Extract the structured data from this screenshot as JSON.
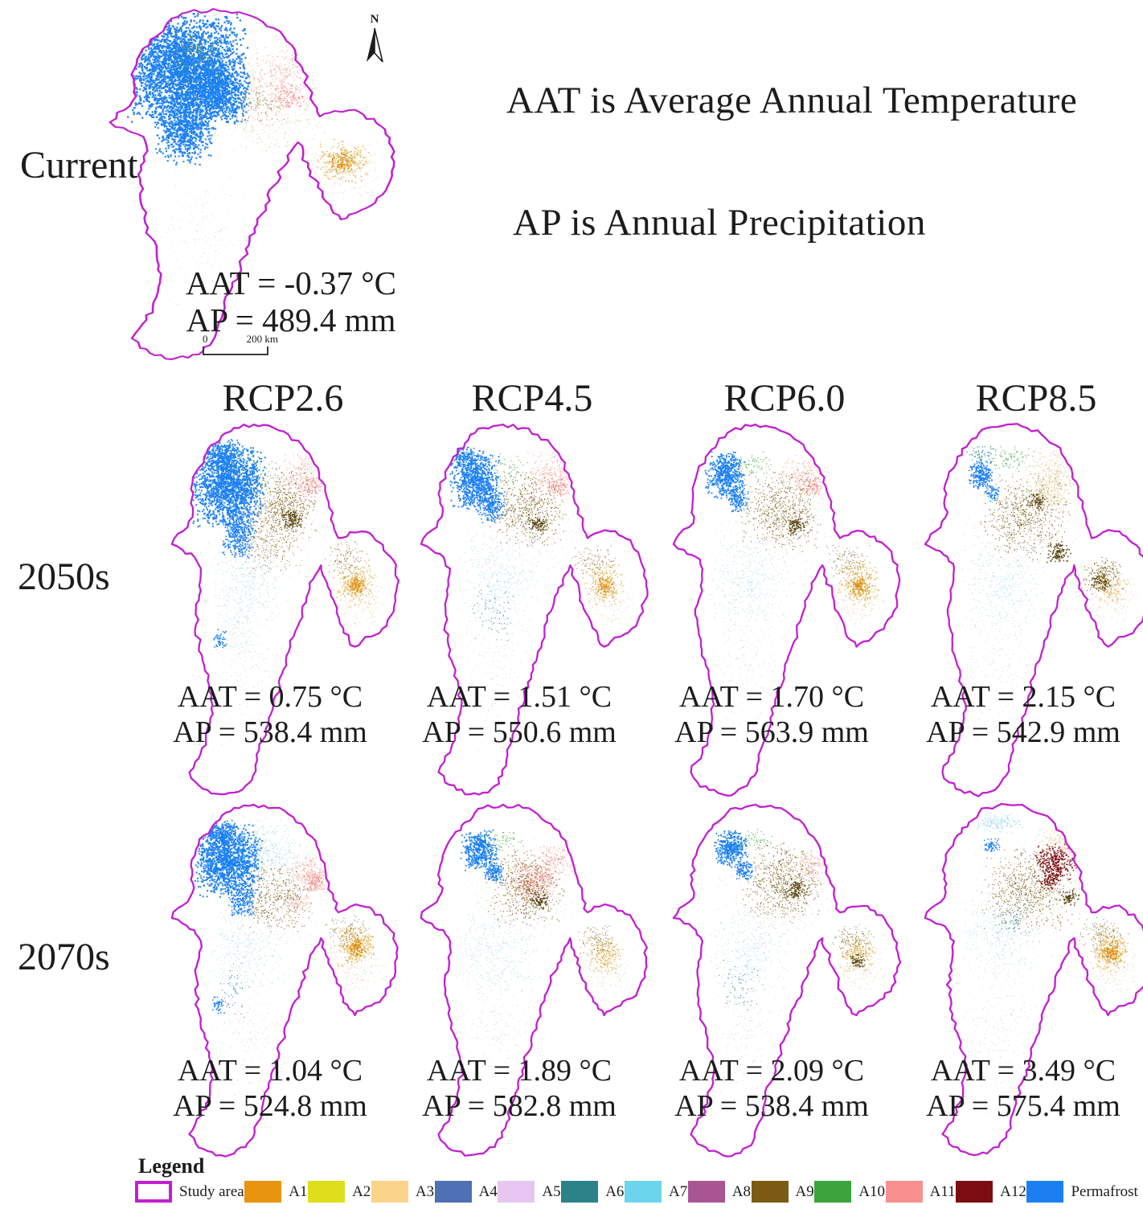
{
  "notes": {
    "line1": "AAT is Average Annual Temperature",
    "line2": "AP is Annual Precipitation"
  },
  "current": {
    "label": "Current",
    "aat": "AAT = -0.37 °C",
    "ap": "AP = 489.4 mm",
    "north_label": "N",
    "scalebar_zero": "0",
    "scalebar_end": "200 km"
  },
  "scenarios": [
    "RCP2.6",
    "RCP4.5",
    "RCP6.0",
    "RCP8.5"
  ],
  "rows": [
    {
      "label": "2050s",
      "maps": [
        {
          "scenario": "RCP2.6",
          "aat": "AAT = 0.75 °C",
          "ap": "AP = 538.4 mm"
        },
        {
          "scenario": "RCP4.5",
          "aat": "AAT = 1.51 °C",
          "ap": "AP = 550.6 mm"
        },
        {
          "scenario": "RCP6.0",
          "aat": "AAT = 1.70 °C",
          "ap": "AP = 563.9 mm"
        },
        {
          "scenario": "RCP8.5",
          "aat": "AAT = 2.15 °C",
          "ap": "AP = 542.9 mm"
        }
      ]
    },
    {
      "label": "2070s",
      "maps": [
        {
          "scenario": "RCP2.6",
          "aat": "AAT = 1.04 °C",
          "ap": "AP = 524.8 mm"
        },
        {
          "scenario": "RCP4.5",
          "aat": "AAT = 1.89 °C",
          "ap": "AP = 582.8 mm"
        },
        {
          "scenario": "RCP6.0",
          "aat": "AAT = 2.09 °C",
          "ap": "AP = 538.4 mm"
        },
        {
          "scenario": "RCP8.5",
          "aat": "AAT = 3.49 °C",
          "ap": "AP = 575.4 mm"
        }
      ]
    }
  ],
  "legend": {
    "title": "Legend",
    "outline_color": "#c21fd0",
    "items": [
      {
        "label": "Study area",
        "type": "outline",
        "color": "#c21fd0"
      },
      {
        "label": "A1",
        "color": "#e8940e"
      },
      {
        "label": "A2",
        "color": "#dede1c"
      },
      {
        "label": "A3",
        "color": "#fbd38b"
      },
      {
        "label": "A4",
        "color": "#4e70b4"
      },
      {
        "label": "A5",
        "color": "#e7c7f2"
      },
      {
        "label": "A6",
        "color": "#2b8288"
      },
      {
        "label": "A7",
        "color": "#6bd5ee"
      },
      {
        "label": "A8",
        "color": "#aa5593"
      },
      {
        "label": "A9",
        "color": "#7b5b13"
      },
      {
        "label": "A10",
        "color": "#3ba43b"
      },
      {
        "label": "A11",
        "color": "#f89090"
      },
      {
        "label": "A12",
        "color": "#7c0e12"
      },
      {
        "label": "Permafrost",
        "color": "#1b7ff2"
      }
    ]
  },
  "map_palette": {
    "blue": "#1b7ff2",
    "lightblue": "#79b7ec",
    "cyan": "#a8dcea",
    "teal": "#2b8288",
    "green": "#3ba43b",
    "olive": "#9aa626",
    "pink": "#f2b7b0",
    "salmon": "#f48f8f",
    "gold": "#e3b44e",
    "deeporange": "#de8d12",
    "brown": "#7b5b13",
    "darkbrown": "#55400e",
    "darkred": "#7c0e12",
    "tan": "#e3d5ae",
    "web": "#9c8a66"
  },
  "map_render": {
    "current": [
      [
        "web",
        150,
        110,
        80,
        80,
        260,
        0.8,
        0.5
      ],
      [
        "web",
        120,
        280,
        50,
        120,
        160,
        0.8,
        0.5
      ],
      [
        "tan",
        190,
        140,
        50,
        45,
        220,
        1.2,
        0.8
      ],
      [
        "pink",
        192,
        92,
        40,
        46,
        340,
        1.4,
        0.85
      ],
      [
        "salmon",
        200,
        112,
        17,
        18,
        90,
        1.4,
        0.9
      ],
      [
        "blue",
        100,
        75,
        62,
        72,
        2800,
        2.3,
        0.95
      ],
      [
        "blue",
        100,
        148,
        30,
        48,
        800,
        2.1,
        0.95
      ],
      [
        "blue",
        132,
        108,
        34,
        38,
        700,
        2.1,
        0.95
      ],
      [
        "olive",
        112,
        52,
        34,
        28,
        110,
        1.2,
        0.9
      ],
      [
        "green",
        104,
        84,
        40,
        45,
        120,
        1.1,
        0.9
      ],
      [
        "gold",
        252,
        190,
        26,
        28,
        260,
        1.5,
        0.9
      ],
      [
        "deeporange",
        250,
        192,
        13,
        14,
        90,
        1.7,
        0.9
      ],
      [
        "tan",
        252,
        205,
        38,
        40,
        200,
        1.2,
        0.8
      ],
      [
        "brown",
        170,
        125,
        30,
        30,
        120,
        1.0,
        0.85
      ]
    ],
    "m50r26": [
      [
        "web",
        150,
        115,
        78,
        78,
        320,
        0.8,
        0.5
      ],
      [
        "web",
        118,
        280,
        48,
        110,
        200,
        0.8,
        0.5
      ],
      [
        "cyan",
        120,
        185,
        52,
        58,
        340,
        1.1,
        0.8
      ],
      [
        "cyan",
        108,
        240,
        28,
        45,
        140,
        1.0,
        0.8
      ],
      [
        "pink",
        190,
        62,
        32,
        28,
        240,
        1.3,
        0.85
      ],
      [
        "salmon",
        197,
        74,
        14,
        13,
        80,
        1.3,
        0.9
      ],
      [
        "brown",
        162,
        96,
        44,
        46,
        560,
        1.1,
        0.9
      ],
      [
        "darkbrown",
        174,
        113,
        14,
        12,
        110,
        1.5,
        0.95
      ],
      [
        "brown",
        142,
        140,
        48,
        38,
        280,
        1.0,
        0.85
      ],
      [
        "blue",
        96,
        72,
        46,
        54,
        1600,
        2.0,
        0.95
      ],
      [
        "blue",
        108,
        128,
        22,
        32,
        380,
        1.7,
        0.95
      ],
      [
        "blue",
        86,
        38,
        30,
        20,
        260,
        1.7,
        0.95
      ],
      [
        "blue",
        86,
        255,
        9,
        15,
        45,
        1.6,
        0.95
      ],
      [
        "gold",
        250,
        190,
        26,
        28,
        250,
        1.4,
        0.9
      ],
      [
        "deeporange",
        251,
        192,
        12,
        13,
        90,
        1.6,
        0.9
      ],
      [
        "brown",
        240,
        162,
        30,
        24,
        130,
        1.0,
        0.85
      ],
      [
        "tan",
        254,
        208,
        36,
        36,
        170,
        1.1,
        0.8
      ],
      [
        "green",
        125,
        60,
        35,
        30,
        80,
        1.1,
        0.9
      ]
    ],
    "m50r45": [
      [
        "web",
        150,
        118,
        78,
        78,
        340,
        0.8,
        0.5
      ],
      [
        "web",
        118,
        282,
        48,
        110,
        210,
        0.8,
        0.5
      ],
      [
        "cyan",
        122,
        183,
        54,
        60,
        360,
        1.1,
        0.8
      ],
      [
        "teal",
        115,
        222,
        28,
        40,
        70,
        1.1,
        0.9
      ],
      [
        "pink",
        187,
        60,
        33,
        29,
        270,
        1.3,
        0.85
      ],
      [
        "salmon",
        194,
        75,
        15,
        13,
        85,
        1.3,
        0.9
      ],
      [
        "brown",
        158,
        100,
        47,
        48,
        540,
        1.1,
        0.9
      ],
      [
        "darkbrown",
        169,
        118,
        13,
        12,
        85,
        1.5,
        0.95
      ],
      [
        "blue",
        93,
        66,
        31,
        37,
        750,
        1.9,
        0.95
      ],
      [
        "blue",
        113,
        96,
        19,
        23,
        270,
        1.6,
        0.95
      ],
      [
        "blue",
        81,
        41,
        19,
        15,
        130,
        1.6,
        0.95
      ],
      [
        "gold",
        250,
        190,
        25,
        27,
        210,
        1.4,
        0.9
      ],
      [
        "deeporange",
        251,
        191,
        11,
        12,
        70,
        1.6,
        0.9
      ],
      [
        "brown",
        238,
        164,
        28,
        24,
        125,
        1.0,
        0.85
      ],
      [
        "tan",
        254,
        208,
        35,
        35,
        160,
        1.1,
        0.8
      ],
      [
        "green",
        130,
        55,
        32,
        24,
        70,
        1.1,
        0.9
      ]
    ],
    "m50r60": [
      [
        "web",
        150,
        118,
        78,
        78,
        350,
        0.8,
        0.5
      ],
      [
        "web",
        118,
        283,
        48,
        110,
        215,
        0.8,
        0.5
      ],
      [
        "cyan",
        120,
        188,
        54,
        60,
        350,
        1.1,
        0.8
      ],
      [
        "pink",
        189,
        62,
        31,
        27,
        240,
        1.3,
        0.85
      ],
      [
        "salmon",
        196,
        74,
        14,
        12,
        75,
        1.3,
        0.9
      ],
      [
        "brown",
        156,
        103,
        50,
        50,
        580,
        1.1,
        0.9
      ],
      [
        "darkbrown",
        177,
        121,
        14,
        12,
        95,
        1.5,
        0.95
      ],
      [
        "blue",
        91,
        61,
        25,
        29,
        470,
        1.9,
        0.95
      ],
      [
        "blue",
        105,
        89,
        15,
        19,
        170,
        1.6,
        0.95
      ],
      [
        "green",
        122,
        50,
        27,
        19,
        75,
        1.1,
        0.9
      ],
      [
        "gold",
        252,
        189,
        26,
        28,
        240,
        1.5,
        0.9
      ],
      [
        "deeporange",
        252,
        191,
        13,
        13,
        95,
        1.7,
        0.9
      ],
      [
        "tan",
        253,
        208,
        36,
        36,
        165,
        1.1,
        0.8
      ],
      [
        "brown",
        240,
        163,
        28,
        23,
        120,
        1.0,
        0.85
      ]
    ],
    "m50r85": [
      [
        "web",
        150,
        118,
        78,
        78,
        360,
        0.8,
        0.5
      ],
      [
        "web",
        118,
        283,
        48,
        110,
        220,
        0.8,
        0.5
      ],
      [
        "cyan",
        122,
        190,
        54,
        62,
        350,
        1.1,
        0.8
      ],
      [
        "tan",
        183,
        62,
        40,
        34,
        330,
        1.4,
        0.85
      ],
      [
        "gold",
        178,
        85,
        28,
        22,
        130,
        1.2,
        0.7
      ],
      [
        "brown",
        150,
        110,
        56,
        52,
        620,
        1.1,
        0.9
      ],
      [
        "darkbrown",
        189,
        152,
        16,
        13,
        115,
        1.5,
        0.95
      ],
      [
        "darkbrown",
        163,
        92,
        11,
        10,
        70,
        1.4,
        0.95
      ],
      [
        "green",
        132,
        42,
        31,
        17,
        85,
        1.1,
        0.9
      ],
      [
        "teal",
        97,
        36,
        19,
        12,
        55,
        1.2,
        0.9
      ],
      [
        "blue",
        96,
        60,
        16,
        18,
        220,
        1.7,
        0.95
      ],
      [
        "blue",
        109,
        82,
        10,
        11,
        75,
        1.5,
        0.95
      ],
      [
        "brown",
        243,
        180,
        27,
        23,
        200,
        1.2,
        0.9
      ],
      [
        "darkbrown",
        240,
        188,
        12,
        11,
        70,
        1.5,
        0.95
      ],
      [
        "gold",
        255,
        195,
        22,
        24,
        110,
        1.3,
        0.85
      ],
      [
        "tan",
        253,
        208,
        35,
        35,
        155,
        1.1,
        0.8
      ]
    ],
    "m70r26": [
      [
        "web",
        150,
        118,
        78,
        78,
        330,
        0.8,
        0.5
      ],
      [
        "web",
        118,
        282,
        48,
        110,
        205,
        0.8,
        0.5
      ],
      [
        "cyan",
        130,
        60,
        55,
        45,
        450,
        1.3,
        0.8
      ],
      [
        "cyan",
        118,
        182,
        50,
        56,
        300,
        1.1,
        0.8
      ],
      [
        "pink",
        196,
        90,
        30,
        27,
        280,
        1.4,
        0.85
      ],
      [
        "salmon",
        201,
        97,
        14,
        13,
        85,
        1.4,
        0.9
      ],
      [
        "pink",
        182,
        125,
        16,
        14,
        90,
        1.3,
        0.8
      ],
      [
        "brown",
        152,
        118,
        46,
        44,
        400,
        1.1,
        0.9
      ],
      [
        "blue",
        96,
        70,
        42,
        48,
        1250,
        2.0,
        0.95
      ],
      [
        "blue",
        86,
        36,
        25,
        17,
        220,
        1.7,
        0.95
      ],
      [
        "blue",
        113,
        117,
        19,
        26,
        250,
        1.6,
        0.95
      ],
      [
        "blue",
        85,
        250,
        8,
        13,
        40,
        1.6,
        0.95
      ],
      [
        "gold",
        251,
        177,
        25,
        26,
        260,
        1.5,
        0.9
      ],
      [
        "deeporange",
        251,
        179,
        12,
        12,
        85,
        1.7,
        0.9
      ],
      [
        "brown",
        238,
        160,
        28,
        22,
        120,
        1.0,
        0.85
      ],
      [
        "tan",
        253,
        205,
        35,
        35,
        160,
        1.1,
        0.8
      ],
      [
        "teal",
        103,
        232,
        24,
        38,
        55,
        1.1,
        0.9
      ]
    ],
    "m70r45": [
      [
        "web",
        150,
        118,
        78,
        78,
        345,
        0.8,
        0.5
      ],
      [
        "web",
        118,
        283,
        48,
        110,
        215,
        0.8,
        0.5
      ],
      [
        "cyan",
        120,
        185,
        53,
        60,
        340,
        1.1,
        0.8
      ],
      [
        "salmon",
        166,
        97,
        31,
        29,
        310,
        1.4,
        0.85
      ],
      [
        "pink",
        191,
        70,
        25,
        21,
        160,
        1.3,
        0.85
      ],
      [
        "brown",
        156,
        106,
        50,
        50,
        540,
        1.1,
        0.9
      ],
      [
        "darkbrown",
        171,
        121,
        13,
        12,
        85,
        1.5,
        0.95
      ],
      [
        "blue",
        99,
        58,
        23,
        27,
        420,
        1.8,
        0.95
      ],
      [
        "blue",
        116,
        86,
        13,
        16,
        140,
        1.6,
        0.95
      ],
      [
        "gold",
        250,
        189,
        23,
        25,
        160,
        1.4,
        0.9
      ],
      [
        "brown",
        242,
        170,
        27,
        22,
        125,
        1.0,
        0.85
      ],
      [
        "tan",
        253,
        207,
        34,
        34,
        155,
        1.1,
        0.8
      ],
      [
        "green",
        128,
        48,
        26,
        16,
        60,
        1.1,
        0.9
      ]
    ],
    "m70r60": [
      [
        "web",
        150,
        118,
        78,
        78,
        350,
        0.8,
        0.5
      ],
      [
        "web",
        118,
        283,
        48,
        110,
        218,
        0.8,
        0.5
      ],
      [
        "cyan",
        118,
        183,
        53,
        60,
        330,
        1.1,
        0.8
      ],
      [
        "teal",
        107,
        228,
        26,
        38,
        60,
        1.1,
        0.9
      ],
      [
        "pink",
        196,
        76,
        23,
        20,
        150,
        1.3,
        0.85
      ],
      [
        "brown",
        159,
        99,
        53,
        52,
        640,
        1.1,
        0.9
      ],
      [
        "darkbrown",
        176,
        106,
        15,
        13,
        105,
        1.5,
        0.95
      ],
      [
        "blue",
        98,
        57,
        21,
        24,
        360,
        1.8,
        0.95
      ],
      [
        "blue",
        113,
        83,
        12,
        14,
        115,
        1.6,
        0.95
      ],
      [
        "gold",
        250,
        187,
        23,
        25,
        160,
        1.4,
        0.9
      ],
      [
        "brown",
        245,
        170,
        27,
        22,
        135,
        1.0,
        0.85
      ],
      [
        "darkbrown",
        251,
        196,
        11,
        10,
        65,
        1.5,
        0.95
      ],
      [
        "tan",
        253,
        207,
        34,
        34,
        155,
        1.1,
        0.8
      ],
      [
        "green",
        126,
        46,
        25,
        15,
        55,
        1.1,
        0.9
      ]
    ],
    "m70r85": [
      [
        "web",
        152,
        115,
        80,
        80,
        380,
        0.8,
        0.5
      ],
      [
        "web",
        118,
        283,
        48,
        110,
        225,
        0.8,
        0.5
      ],
      [
        "cyan",
        116,
        24,
        32,
        14,
        170,
        1.3,
        0.8
      ],
      [
        "cyan",
        121,
        165,
        50,
        57,
        310,
        1.1,
        0.8
      ],
      [
        "teal",
        134,
        146,
        21,
        18,
        65,
        1.1,
        0.9
      ],
      [
        "tan",
        190,
        45,
        30,
        20,
        170,
        1.3,
        0.8
      ],
      [
        "brown",
        152,
        108,
        57,
        56,
        640,
        1.1,
        0.9
      ],
      [
        "darkbrown",
        202,
        117,
        13,
        11,
        75,
        1.5,
        0.95
      ],
      [
        "darkred",
        186,
        74,
        27,
        25,
        340,
        1.5,
        0.95
      ],
      [
        "darkred",
        178,
        97,
        13,
        11,
        90,
        1.4,
        0.95
      ],
      [
        "pink",
        206,
        56,
        20,
        17,
        110,
        1.3,
        0.8
      ],
      [
        "blue",
        109,
        52,
        10,
        10,
        60,
        1.5,
        0.95
      ],
      [
        "gold",
        252,
        184,
        23,
        26,
        280,
        1.6,
        0.9
      ],
      [
        "deeporange",
        253,
        186,
        11,
        11,
        75,
        1.6,
        0.9
      ],
      [
        "brown",
        240,
        163,
        29,
        22,
        135,
        1.0,
        0.85
      ],
      [
        "tan",
        253,
        206,
        34,
        34,
        165,
        1.1,
        0.8
      ]
    ]
  }
}
